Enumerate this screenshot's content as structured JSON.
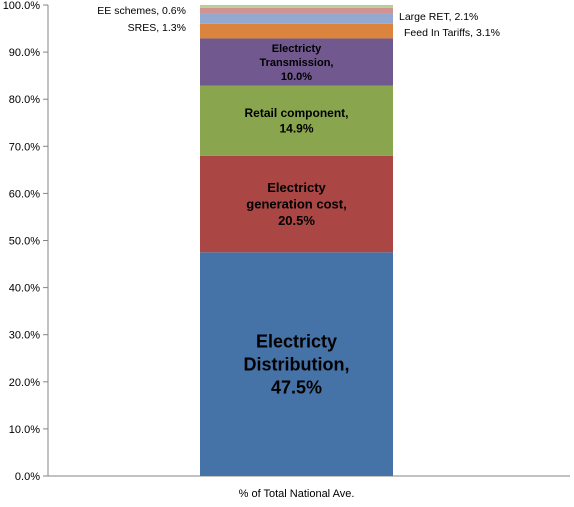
{
  "chart_data": {
    "type": "bar",
    "stacked": true,
    "categories": [
      "% of Total National Ave."
    ],
    "ylim": [
      0,
      100
    ],
    "y_tick_labels": [
      "0.0%",
      "10.0%",
      "20.0%",
      "30.0%",
      "40.0%",
      "50.0%",
      "60.0%",
      "70.0%",
      "80.0%",
      "90.0%",
      "100.0%"
    ],
    "grid": false,
    "legend": "none",
    "series": [
      {
        "name": "Electricty Distribution",
        "value": 47.5,
        "color": "#4572A7",
        "label_lines": [
          "Electricty",
          "Distribution,",
          "47.5%"
        ],
        "label_position": "inside"
      },
      {
        "name": "Electricty generation cost",
        "value": 20.5,
        "color": "#AA4643",
        "label_lines": [
          "Electricty",
          "generation cost,",
          "20.5%"
        ],
        "label_position": "inside"
      },
      {
        "name": "Retail component",
        "value": 14.9,
        "color": "#89A54E",
        "label_lines": [
          "Retail component,",
          "14.9%"
        ],
        "label_position": "inside"
      },
      {
        "name": "Electricty Transmission",
        "value": 10.0,
        "color": "#71588F",
        "label_lines": [
          "Electricty",
          "Transmission,",
          "10.0%"
        ],
        "label_position": "inside"
      },
      {
        "name": "Feed In Tariffs",
        "value": 3.1,
        "color": "#DB843D",
        "label_lines": [
          "Feed  In Tariffs, 3.1%"
        ],
        "label_position": "right"
      },
      {
        "name": "Large  RET",
        "value": 2.1,
        "color": "#93A9CF",
        "label_lines": [
          "Large  RET, 2.1%"
        ],
        "label_position": "right"
      },
      {
        "name": "SRES",
        "value": 1.3,
        "color": "#D19392",
        "label_lines": [
          "SRES, 1.3%"
        ],
        "label_position": "left"
      },
      {
        "name": "EE schemes",
        "value": 0.6,
        "color": "#B9CD96",
        "label_lines": [
          "EE schemes, 0.6%"
        ],
        "label_position": "left"
      }
    ]
  }
}
